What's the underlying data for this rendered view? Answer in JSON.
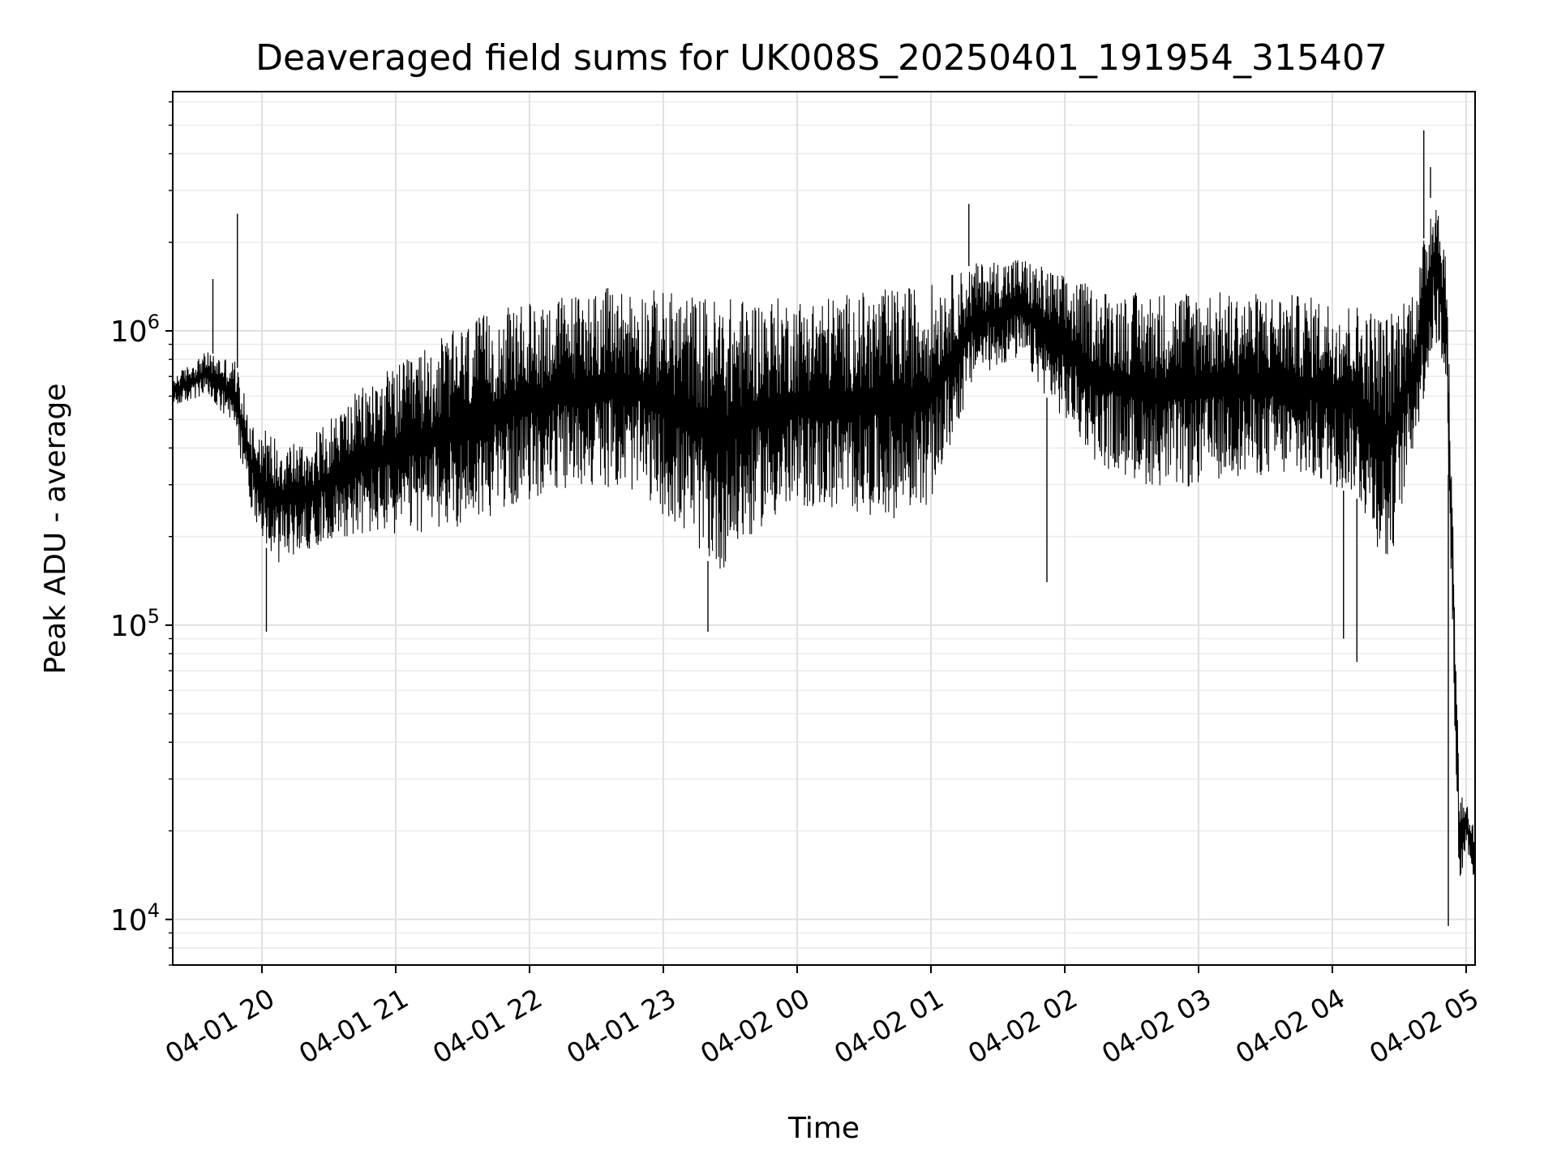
{
  "chart_data": {
    "type": "line",
    "title": "Deaveraged field sums for UK008S_20250401_191954_315407",
    "xlabel": "Time",
    "ylabel": "Peak ADU - average",
    "y_scale": "log",
    "ylim": [
      7000,
      6500000
    ],
    "xlim": [
      "2025-04-01 19:20",
      "2025-04-02 05:04"
    ],
    "grid": true,
    "legend": "none",
    "x_tick_labels": [
      "04-01 20",
      "04-01 21",
      "04-01 22",
      "04-01 23",
      "04-02 00",
      "04-02 01",
      "04-02 02",
      "04-02 03",
      "04-02 04",
      "04-02 05"
    ],
    "x_tick_values": [
      "2025-04-01 20:00",
      "2025-04-01 21:00",
      "2025-04-01 22:00",
      "2025-04-01 23:00",
      "2025-04-02 00:00",
      "2025-04-02 01:00",
      "2025-04-02 02:00",
      "2025-04-02 03:00",
      "2025-04-02 04:00",
      "2025-04-02 05:00"
    ],
    "y_tick_labels": [
      {
        "base": "10",
        "exp": "4",
        "value": 10000
      },
      {
        "base": "10",
        "exp": "5",
        "value": 100000
      },
      {
        "base": "10",
        "exp": "6",
        "value": 1000000
      }
    ],
    "series_color": "#000000",
    "envelope": {
      "x": [
        "2025-04-01 19:20",
        "2025-04-01 19:35",
        "2025-04-01 19:48",
        "2025-04-01 19:55",
        "2025-04-01 20:05",
        "2025-04-01 20:20",
        "2025-04-01 20:35",
        "2025-04-01 20:50",
        "2025-04-01 21:05",
        "2025-04-01 21:20",
        "2025-04-01 21:35",
        "2025-04-01 21:50",
        "2025-04-01 22:10",
        "2025-04-01 22:30",
        "2025-04-01 22:50",
        "2025-04-01 23:10",
        "2025-04-01 23:25",
        "2025-04-01 23:45",
        "2025-04-02 00:05",
        "2025-04-02 00:25",
        "2025-04-02 00:45",
        "2025-04-02 01:00",
        "2025-04-02 01:20",
        "2025-04-02 01:40",
        "2025-04-02 01:55",
        "2025-04-02 02:15",
        "2025-04-02 02:35",
        "2025-04-02 02:55",
        "2025-04-02 03:15",
        "2025-04-02 03:35",
        "2025-04-02 03:55",
        "2025-04-02 04:10",
        "2025-04-02 04:25",
        "2025-04-02 04:38",
        "2025-04-02 04:46",
        "2025-04-02 04:51",
        "2025-04-02 04:53",
        "2025-04-02 04:57",
        "2025-04-02 05:00",
        "2025-04-02 05:04"
      ],
      "upper": [
        700000,
        850000,
        800000,
        500000,
        450000,
        420000,
        550000,
        700000,
        800000,
        950000,
        1100000,
        1200000,
        1300000,
        1400000,
        1400000,
        1350000,
        1300000,
        1300000,
        1300000,
        1350000,
        1400000,
        1450000,
        1700000,
        1800000,
        1600000,
        1400000,
        1350000,
        1400000,
        1350000,
        1350000,
        1300000,
        1250000,
        1150000,
        1500000,
        3500000,
        1800000,
        500000,
        28000,
        26000,
        20000
      ],
      "lower": [
        550000,
        600000,
        450000,
        250000,
        160000,
        180000,
        200000,
        200000,
        200000,
        210000,
        220000,
        250000,
        280000,
        300000,
        280000,
        200000,
        150000,
        220000,
        250000,
        240000,
        230000,
        260000,
        700000,
        800000,
        550000,
        350000,
        300000,
        290000,
        320000,
        320000,
        300000,
        280000,
        150000,
        450000,
        900000,
        700000,
        150000,
        12000,
        18000,
        13000
      ]
    },
    "spikes": [
      {
        "x": "2025-04-01 19:49",
        "y": 2500000,
        "dir": "up"
      },
      {
        "x": "2025-04-01 19:38",
        "y": 1500000,
        "dir": "up"
      },
      {
        "x": "2025-04-02 01:17",
        "y": 2700000,
        "dir": "up"
      },
      {
        "x": "2025-04-02 04:41",
        "y": 4800000,
        "dir": "up"
      },
      {
        "x": "2025-04-02 04:44",
        "y": 3600000,
        "dir": "up"
      },
      {
        "x": "2025-04-01 20:02",
        "y": 95000,
        "dir": "down"
      },
      {
        "x": "2025-04-01 23:20",
        "y": 95000,
        "dir": "down"
      },
      {
        "x": "2025-04-02 01:52",
        "y": 140000,
        "dir": "down"
      },
      {
        "x": "2025-04-02 04:11",
        "y": 75000,
        "dir": "down"
      },
      {
        "x": "2025-04-02 04:05",
        "y": 90000,
        "dir": "down"
      },
      {
        "x": "2025-04-02 04:52",
        "y": 9500,
        "dir": "down"
      }
    ]
  }
}
